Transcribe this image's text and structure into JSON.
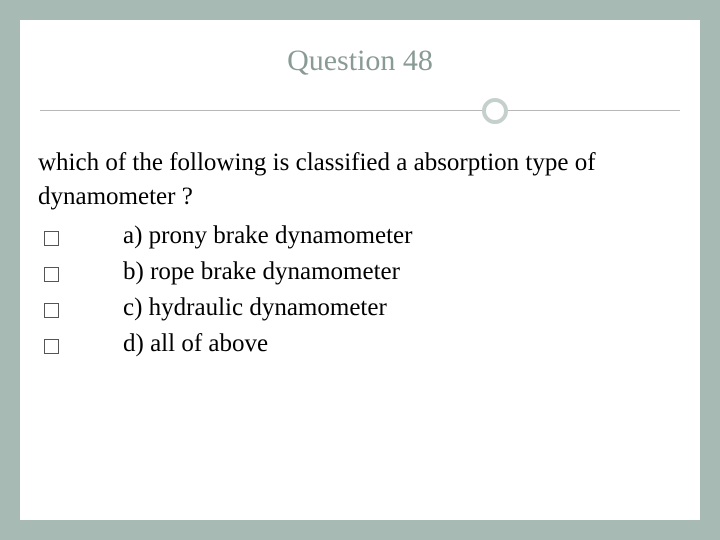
{
  "slide": {
    "title": "Question 48",
    "question": "which of the following is classified a absorption type of dynamometer ?",
    "options": [
      {
        "label": "a) prony brake dynamometer"
      },
      {
        "label": " b) rope brake dynamometer"
      },
      {
        "label": " c) hydraulic dynamometer"
      },
      {
        "label": " d) all of above"
      }
    ],
    "colors": {
      "page_bg": "#a8bab4",
      "slide_bg": "#ffffff",
      "title_color": "#8a9b95",
      "text_color": "#000000",
      "divider_color": "#b8b8b8",
      "circle_border": "#c5d0cc",
      "checkbox_border": "#555555"
    },
    "typography": {
      "title_fontsize": 30,
      "body_fontsize": 25,
      "font_family": "Georgia, Times New Roman, serif"
    },
    "layout": {
      "slide_width": 680,
      "slide_height": 500,
      "circle_position_pct": 68
    }
  }
}
